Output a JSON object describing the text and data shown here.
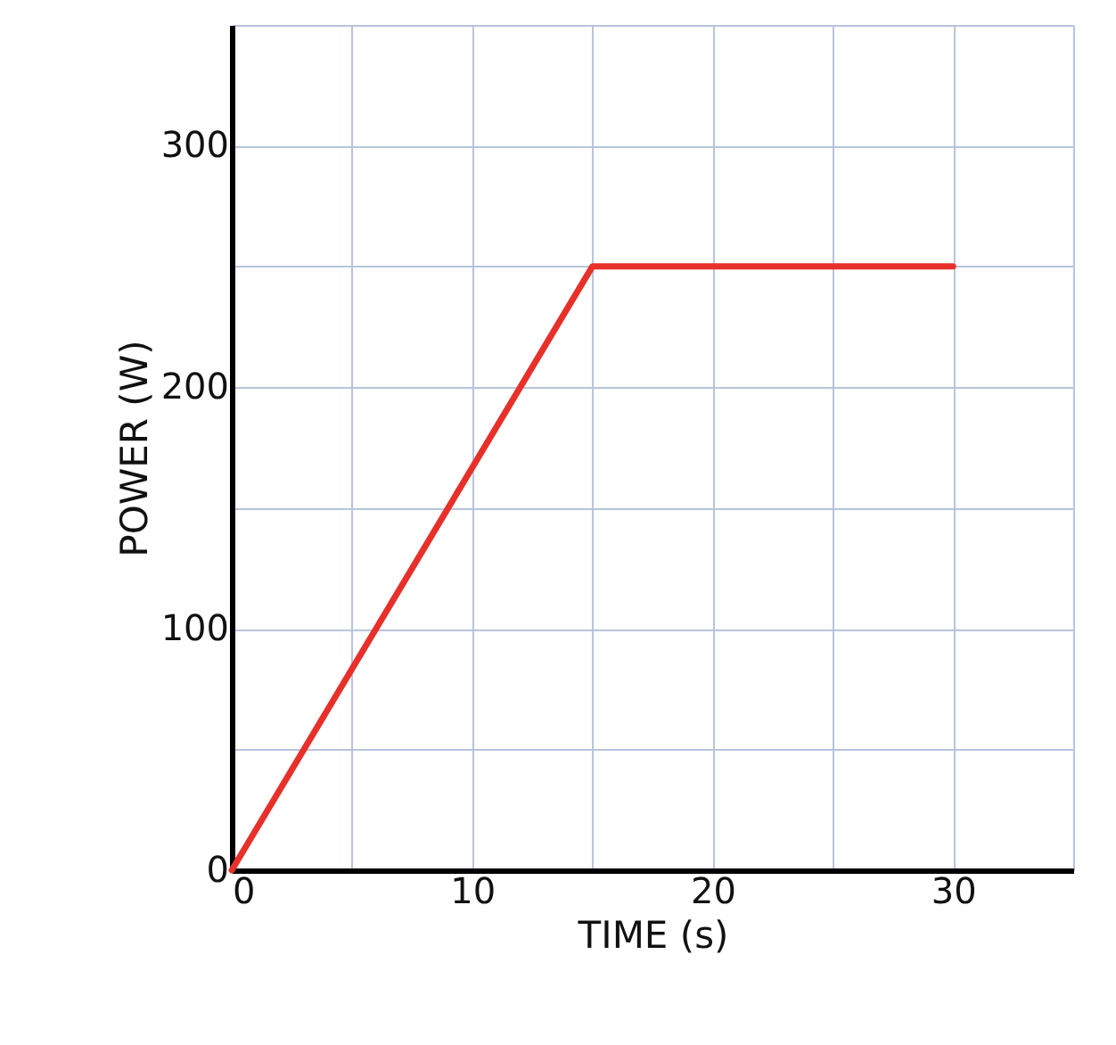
{
  "chart_data": {
    "type": "line",
    "xlabel": "TIME (s)",
    "ylabel": "POWER (W)",
    "x": [
      0,
      15,
      30
    ],
    "series": [
      {
        "color": "#e8302a",
        "values": [
          0,
          250,
          250
        ]
      }
    ],
    "xlim": [
      0,
      35
    ],
    "ylim": [
      0,
      350
    ],
    "xticks": [
      0,
      {
        "value": 5,
        "label": null
      },
      10,
      {
        "value": 15,
        "label": null
      },
      20,
      {
        "value": 25,
        "label": null
      },
      30,
      {
        "value": 35,
        "label": null
      }
    ],
    "yticks": [
      0,
      {
        "value": 50,
        "label": null
      },
      100,
      {
        "value": 150,
        "label": null
      },
      200,
      {
        "value": 250,
        "label": null
      },
      300,
      {
        "value": 350,
        "label": null
      }
    ],
    "grid": true,
    "marker": "none",
    "line_style": "solid"
  }
}
